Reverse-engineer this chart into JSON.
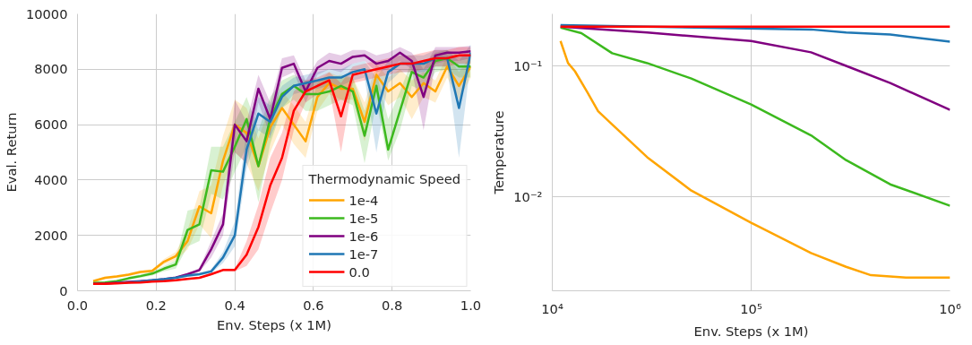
{
  "chart_data": [
    {
      "type": "line",
      "xlabel": "Env. Steps (x 1M)",
      "ylabel": "Eval. Return",
      "legend_title": "Thermodynamic Speed",
      "legend": "bottom right",
      "grid": true,
      "x": [
        0.04,
        0.07,
        0.1,
        0.13,
        0.16,
        0.19,
        0.22,
        0.25,
        0.28,
        0.31,
        0.34,
        0.37,
        0.4,
        0.43,
        0.46,
        0.49,
        0.52,
        0.55,
        0.58,
        0.61,
        0.64,
        0.67,
        0.7,
        0.73,
        0.76,
        0.79,
        0.82,
        0.85,
        0.88,
        0.91,
        0.94,
        0.97,
        1.0
      ],
      "xlim": [
        0,
        1
      ],
      "xticks": [
        {
          "value": 0,
          "label": "0.0"
        },
        {
          "value": 0.2,
          "label": "0.2"
        },
        {
          "value": 0.4,
          "label": "0.4"
        },
        {
          "value": 0.6,
          "label": "0.6"
        },
        {
          "value": 0.8,
          "label": "0.8"
        },
        {
          "value": 1,
          "label": "1.0"
        }
      ],
      "ylim": [
        0,
        10000
      ],
      "yticks": [
        0,
        2000,
        4000,
        6000,
        8000,
        10000
      ],
      "series": [
        {
          "name": "1e-4",
          "color": "#ffa500",
          "values": [
            350,
            470,
            520,
            580,
            680,
            720,
            1050,
            1250,
            1800,
            3050,
            2800,
            4700,
            6000,
            5700,
            4500,
            5900,
            6600,
            6000,
            5400,
            7000,
            7500,
            7300,
            7300,
            6100,
            7800,
            7200,
            7500,
            7000,
            7500,
            7200,
            8100,
            7400,
            8100
          ],
          "lower": [
            300,
            420,
            470,
            530,
            620,
            660,
            950,
            1100,
            1500,
            2400,
            1900,
            3800,
            5000,
            4600,
            3600,
            5000,
            6000,
            5300,
            4800,
            6500,
            7100,
            6900,
            6900,
            5400,
            7400,
            6700,
            7000,
            6200,
            7000,
            6800,
            7700,
            6900,
            7700
          ],
          "upper": [
            400,
            520,
            570,
            630,
            740,
            780,
            1150,
            1400,
            2200,
            3600,
            3800,
            5600,
            6900,
            6600,
            5500,
            6700,
            7200,
            6700,
            6100,
            7500,
            7900,
            7700,
            7700,
            6800,
            8200,
            7700,
            8000,
            7600,
            7900,
            7600,
            8500,
            7900,
            8500
          ]
        },
        {
          "name": "1e-5",
          "color": "#3cb91e",
          "values": [
            280,
            300,
            350,
            450,
            530,
            620,
            800,
            950,
            2200,
            2400,
            4350,
            4300,
            5200,
            6200,
            4500,
            6200,
            7100,
            7400,
            7100,
            7100,
            7200,
            7400,
            7200,
            5600,
            7400,
            5100,
            6500,
            7900,
            7700,
            8300,
            8400,
            8100,
            8100
          ],
          "lower": [
            250,
            270,
            310,
            400,
            470,
            550,
            700,
            800,
            1600,
            1800,
            3500,
            3300,
            4300,
            5200,
            3200,
            5300,
            6600,
            6900,
            6500,
            6500,
            6700,
            6900,
            6700,
            4600,
            6800,
            4700,
            5800,
            7400,
            7200,
            7900,
            8000,
            7700,
            7700
          ],
          "upper": [
            310,
            330,
            390,
            500,
            590,
            690,
            900,
            1100,
            2900,
            3000,
            5200,
            5200,
            6100,
            7000,
            5800,
            7000,
            7600,
            7800,
            7600,
            7600,
            7700,
            7800,
            7700,
            6500,
            7900,
            6200,
            7200,
            8300,
            8200,
            8600,
            8700,
            8500,
            8500
          ]
        },
        {
          "name": "1e-6",
          "color": "#800080",
          "values": [
            250,
            260,
            290,
            320,
            350,
            380,
            420,
            480,
            600,
            750,
            1500,
            2400,
            6000,
            5400,
            7300,
            6200,
            8050,
            8200,
            7200,
            8050,
            8300,
            8200,
            8450,
            8500,
            8200,
            8300,
            8600,
            8300,
            7000,
            8500,
            8600,
            8600,
            8650
          ],
          "lower": [
            230,
            240,
            270,
            300,
            330,
            360,
            400,
            450,
            550,
            680,
            1200,
            2000,
            5000,
            4600,
            6800,
            5600,
            7700,
            7900,
            6800,
            7800,
            8000,
            7900,
            8200,
            8300,
            7900,
            8000,
            8300,
            8000,
            5800,
            8200,
            8300,
            8300,
            8400
          ],
          "upper": [
            270,
            280,
            310,
            340,
            370,
            400,
            440,
            510,
            650,
            820,
            1800,
            2800,
            6900,
            6100,
            7800,
            6800,
            8400,
            8500,
            7600,
            8300,
            8600,
            8500,
            8700,
            8700,
            8500,
            8600,
            8800,
            8600,
            8000,
            8800,
            8800,
            8800,
            8850
          ]
        },
        {
          "name": "1e-7",
          "color": "#1f77b4",
          "values": [
            null,
            null,
            280,
            310,
            340,
            380,
            420,
            470,
            550,
            600,
            700,
            1200,
            2000,
            5100,
            6400,
            6100,
            7000,
            7400,
            7500,
            7600,
            7700,
            7700,
            7900,
            8000,
            6400,
            7900,
            8200,
            8200,
            8200,
            8400,
            8400,
            6600,
            8600
          ],
          "lower": [
            230,
            240,
            260,
            290,
            320,
            350,
            390,
            430,
            500,
            550,
            630,
            1000,
            1600,
            4400,
            5800,
            5500,
            6600,
            7100,
            7200,
            7300,
            7400,
            7400,
            7600,
            7700,
            5000,
            7500,
            7900,
            7900,
            7900,
            8100,
            8100,
            4800,
            8300
          ],
          "upper": [
            270,
            280,
            300,
            330,
            360,
            410,
            450,
            510,
            600,
            650,
            780,
            1400,
            2500,
            5800,
            7000,
            6700,
            7400,
            7700,
            7800,
            7900,
            8000,
            8000,
            8200,
            8300,
            7700,
            8300,
            8500,
            8500,
            8500,
            8700,
            8700,
            8300,
            8900
          ]
        },
        {
          "name": "0.0",
          "color": "#ff0000",
          "values": [
            250,
            250,
            270,
            290,
            300,
            330,
            350,
            380,
            430,
            470,
            600,
            750,
            750,
            1300,
            2300,
            3800,
            4800,
            6500,
            7200,
            7400,
            7600,
            6300,
            7800,
            7900,
            8000,
            8100,
            8200,
            8200,
            8300,
            8400,
            8400,
            8500,
            8500
          ],
          "lower": [
            230,
            230,
            250,
            270,
            280,
            310,
            330,
            350,
            400,
            440,
            560,
            700,
            700,
            900,
            1500,
            2800,
            4000,
            5800,
            6800,
            7100,
            7300,
            5000,
            7500,
            7600,
            7700,
            7800,
            7900,
            7900,
            8000,
            8100,
            8100,
            8200,
            8200
          ],
          "upper": [
            270,
            270,
            290,
            310,
            320,
            350,
            370,
            410,
            460,
            500,
            640,
            800,
            800,
            1800,
            3100,
            4800,
            5700,
            7200,
            7600,
            7700,
            7900,
            7500,
            8100,
            8200,
            8300,
            8400,
            8500,
            8500,
            8600,
            8700,
            8700,
            8800,
            8800
          ]
        }
      ]
    },
    {
      "type": "line",
      "xlabel": "Env. Steps (x 1M)",
      "ylabel": "Temperature",
      "log": "xy",
      "grid": true,
      "legend": false,
      "xlim": [
        10000,
        1000000
      ],
      "xticks": [
        {
          "value": 10000,
          "label": "10⁴"
        },
        {
          "value": 100000,
          "label": "10⁵"
        },
        {
          "value": 1000000,
          "label": "10⁶"
        }
      ],
      "ylim": [
        0.0019,
        0.25
      ],
      "yticks": [
        {
          "value": 0.01,
          "label": "10⁻²"
        },
        {
          "value": 0.1,
          "label": "10⁻¹"
        }
      ],
      "series": [
        {
          "color": "#ffa500",
          "x": [
            11000,
            12000,
            13000,
            15000,
            17000,
            20000,
            30000,
            50000,
            100000,
            200000,
            300000,
            400000,
            600000,
            1000000
          ],
          "values": [
            0.155,
            0.105,
            0.091,
            0.063,
            0.045,
            0.0356,
            0.02,
            0.0111,
            0.0063,
            0.0037,
            0.0029,
            0.0025,
            0.0024,
            0.0024
          ]
        },
        {
          "color": "#3cb91e",
          "x": [
            11000,
            14000,
            20000,
            30000,
            50000,
            100000,
            200000,
            300000,
            500000,
            1000000
          ],
          "values": [
            0.196,
            0.178,
            0.125,
            0.105,
            0.08,
            0.0506,
            0.0294,
            0.019,
            0.0124,
            0.0085
          ]
        },
        {
          "color": "#800080",
          "x": [
            11000,
            30000,
            100000,
            200000,
            300000,
            500000,
            1000000
          ],
          "values": [
            0.2,
            0.18,
            0.155,
            0.127,
            0.1,
            0.074,
            0.046
          ]
        },
        {
          "color": "#1f77b4",
          "x": [
            11000,
            200000,
            300000,
            500000,
            1000000
          ],
          "values": [
            0.205,
            0.19,
            0.18,
            0.174,
            0.153
          ]
        },
        {
          "color": "#ff0000",
          "x": [
            11000,
            1000000
          ],
          "values": [
            0.2,
            0.2
          ]
        }
      ]
    }
  ]
}
